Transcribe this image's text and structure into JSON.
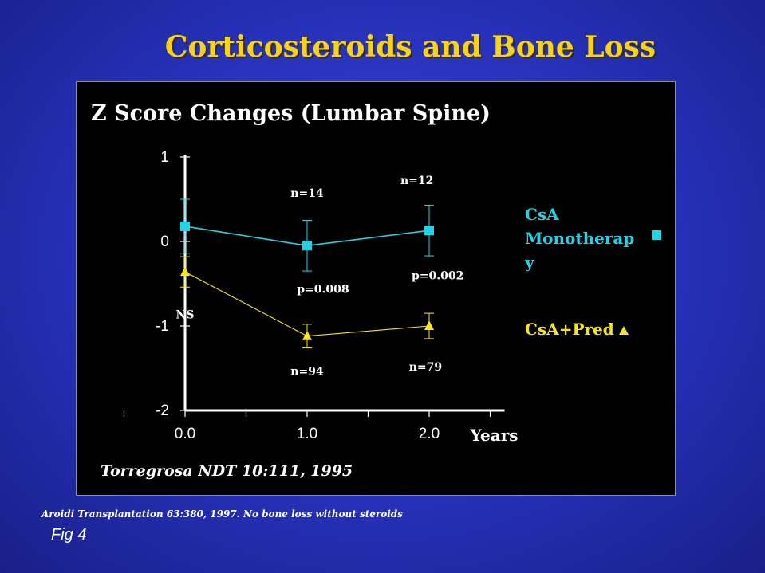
{
  "slide": {
    "title": "Corticosteroids and Bone Loss",
    "footnote": "Aroidi Transplantation 63:380, 1997. No bone loss without steroids",
    "fig_label": "Fig 4"
  },
  "colors": {
    "background": "#2630b8",
    "title": "#f5d31a",
    "panel": "#000000",
    "series_csa": "#22d3e6",
    "series_pred": "#f5e51a",
    "axis": "#ffffff"
  },
  "chart_data": {
    "type": "line",
    "title": "Z Score Changes (Lumbar Spine)",
    "xlabel": "Years",
    "ylabel": "",
    "x": [
      0.0,
      1.0,
      2.0
    ],
    "x_tick_labels": [
      "0.0",
      "1.0",
      "2.0"
    ],
    "xlim": [
      -0.5,
      2.5
    ],
    "ylim": [
      -2,
      1
    ],
    "y_ticks": [
      1,
      0,
      -1,
      -2
    ],
    "y_tick_labels": [
      "1",
      "0",
      "-1",
      "-2"
    ],
    "grid": false,
    "legend": "right",
    "series": [
      {
        "name": "CsA Monotherapy",
        "marker": "square",
        "color": "#22d3e6",
        "values": [
          0.18,
          -0.05,
          0.13
        ],
        "error": [
          0.32,
          0.3,
          0.3
        ]
      },
      {
        "name": "CsA+Pred",
        "marker": "triangle",
        "color": "#f5e51a",
        "values": [
          -0.36,
          -1.12,
          -1.0
        ],
        "error": [
          0.18,
          0.14,
          0.15
        ]
      }
    ],
    "annotations": [
      {
        "text": "n=14",
        "x": 1.0,
        "y": 0.53
      },
      {
        "text": "n=12",
        "x": 1.9,
        "y": 0.68
      },
      {
        "text": "NS",
        "x": 0.0,
        "y": -0.91
      },
      {
        "text": "p=0.008",
        "x": 1.13,
        "y": -0.61
      },
      {
        "text": "p=0.002",
        "x": 2.07,
        "y": -0.45
      },
      {
        "text": "n=94",
        "x": 1.0,
        "y": -1.58
      },
      {
        "text": "n=79",
        "x": 1.97,
        "y": -1.53
      }
    ],
    "legend_entries": [
      {
        "label": "CsA Monotherapy",
        "display": [
          "CsA",
          "Monotherap",
          "y"
        ],
        "marker": "square"
      },
      {
        "label": "CsA+Pred",
        "display": [
          "CsA+Pred"
        ],
        "marker": "triangle"
      }
    ],
    "citation": "Torregrosa NDT 10:111, 1995"
  }
}
